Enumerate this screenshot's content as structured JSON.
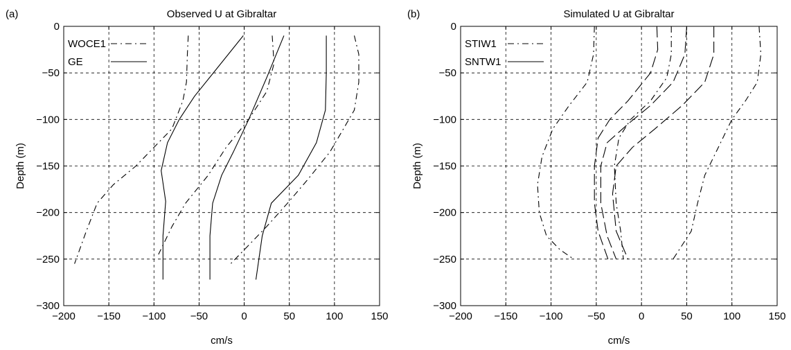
{
  "chart_data": [
    {
      "type": "line",
      "panel_label": "(a)",
      "title": "Observed U at Gibraltar",
      "xlabel": "cm/s",
      "ylabel": "Depth (m)",
      "xlim": [
        -200,
        150
      ],
      "ylim": [
        -300,
        0
      ],
      "xticks": [
        -200,
        -150,
        -100,
        -50,
        0,
        50,
        100,
        150
      ],
      "yticks": [
        0,
        -50,
        -100,
        -150,
        -200,
        -250,
        -300
      ],
      "grid": true,
      "legend": {
        "placement": "top-left",
        "entries": [
          {
            "label": "WOCE1",
            "style": "dashdot"
          },
          {
            "label": "GE",
            "style": "solid"
          }
        ]
      },
      "series": [
        {
          "name": "WOCE1",
          "style": "dashdot",
          "points": [
            [
              -62,
              -10
            ],
            [
              -63,
              -30
            ],
            [
              -64,
              -60
            ],
            [
              -68,
              -80
            ],
            [
              -80,
              -110
            ],
            [
              -100,
              -130
            ],
            [
              -120,
              -150
            ],
            [
              -145,
              -170
            ],
            [
              -163,
              -190
            ],
            [
              -175,
              -220
            ],
            [
              -188,
              -255
            ]
          ]
        },
        {
          "name": "WOCE1",
          "style": "dashdot",
          "points": [
            [
              31,
              -10
            ],
            [
              33,
              -40
            ],
            [
              25,
              -70
            ],
            [
              5,
              -100
            ],
            [
              -20,
              -130
            ],
            [
              -40,
              -160
            ],
            [
              -65,
              -190
            ],
            [
              -80,
              -215
            ],
            [
              -95,
              -245
            ]
          ]
        },
        {
          "name": "WOCE1",
          "style": "dashdot",
          "points": [
            [
              122,
              -10
            ],
            [
              127,
              -30
            ],
            [
              127,
              -60
            ],
            [
              122,
              -90
            ],
            [
              110,
              -110
            ],
            [
              95,
              -135
            ],
            [
              70,
              -165
            ],
            [
              48,
              -190
            ],
            [
              25,
              -215
            ],
            [
              0,
              -240
            ],
            [
              -15,
              -255
            ]
          ]
        },
        {
          "name": "GE",
          "style": "solid",
          "points": [
            [
              -1,
              -10
            ],
            [
              -30,
              -45
            ],
            [
              -55,
              -75
            ],
            [
              -72,
              -100
            ],
            [
              -85,
              -125
            ],
            [
              -92,
              -155
            ],
            [
              -87,
              -188
            ],
            [
              -90,
              -225
            ],
            [
              -90,
              -272
            ]
          ]
        },
        {
          "name": "GE",
          "style": "solid",
          "points": [
            [
              44,
              -10
            ],
            [
              25,
              -55
            ],
            [
              5,
              -100
            ],
            [
              -12,
              -135
            ],
            [
              -25,
              -160
            ],
            [
              -35,
              -190
            ],
            [
              -38,
              -225
            ],
            [
              -38,
              -272
            ]
          ]
        },
        {
          "name": "GE",
          "style": "solid",
          "points": [
            [
              91,
              -10
            ],
            [
              91,
              -50
            ],
            [
              90,
              -90
            ],
            [
              80,
              -125
            ],
            [
              60,
              -160
            ],
            [
              30,
              -190
            ],
            [
              20,
              -225
            ],
            [
              13,
              -272
            ]
          ]
        }
      ]
    },
    {
      "type": "line",
      "panel_label": "(b)",
      "title": "Simulated U at Gibraltar",
      "xlabel": "cm/s",
      "ylabel": "Depth (m)",
      "xlim": [
        -200,
        150
      ],
      "ylim": [
        -300,
        0
      ],
      "xticks": [
        -200,
        -150,
        -100,
        -50,
        0,
        50,
        100,
        150
      ],
      "yticks": [
        0,
        -50,
        -100,
        -150,
        -200,
        -250,
        -300
      ],
      "grid": true,
      "legend": {
        "placement": "top-left",
        "entries": [
          {
            "label": "STIW1",
            "style": "dashdot"
          },
          {
            "label": "SNTW1",
            "style": "solid"
          }
        ]
      },
      "series": [
        {
          "name": "STIW1",
          "style": "dashdot",
          "points": [
            [
              -52,
              0
            ],
            [
              -53,
              -30
            ],
            [
              -60,
              -60
            ],
            [
              -80,
              -85
            ],
            [
              -98,
              -110
            ],
            [
              -110,
              -140
            ],
            [
              -115,
              -170
            ],
            [
              -113,
              -200
            ],
            [
              -105,
              -225
            ],
            [
              -90,
              -240
            ],
            [
              -75,
              -250
            ]
          ]
        },
        {
          "name": "STIW1",
          "style": "dashdot",
          "points": [
            [
              33,
              0
            ],
            [
              33,
              -30
            ],
            [
              28,
              -55
            ],
            [
              10,
              -80
            ],
            [
              -12,
              -100
            ],
            [
              -25,
              -120
            ],
            [
              -30,
              -150
            ],
            [
              -28,
              -190
            ],
            [
              -23,
              -220
            ],
            [
              -20,
              -250
            ]
          ]
        },
        {
          "name": "STIW1",
          "style": "dashdot",
          "points": [
            [
              130,
              0
            ],
            [
              132,
              -30
            ],
            [
              128,
              -60
            ],
            [
              115,
              -80
            ],
            [
              100,
              -100
            ],
            [
              85,
              -130
            ],
            [
              70,
              -160
            ],
            [
              62,
              -190
            ],
            [
              55,
              -220
            ],
            [
              35,
              -250
            ]
          ]
        },
        {
          "name": "",
          "style": "longdash",
          "points": [
            [
              17,
              0
            ],
            [
              18,
              -25
            ],
            [
              10,
              -50
            ],
            [
              -15,
              -80
            ],
            [
              -35,
              -100
            ],
            [
              -48,
              -120
            ],
            [
              -52,
              -150
            ],
            [
              -52,
              -190
            ],
            [
              -48,
              -220
            ],
            [
              -37,
              -250
            ]
          ]
        },
        {
          "name": "",
          "style": "longdash",
          "points": [
            [
              50,
              0
            ],
            [
              48,
              -30
            ],
            [
              35,
              -60
            ],
            [
              10,
              -85
            ],
            [
              -15,
              -105
            ],
            [
              -38,
              -125
            ],
            [
              -45,
              -150
            ],
            [
              -45,
              -190
            ],
            [
              -38,
              -225
            ],
            [
              -28,
              -250
            ]
          ]
        },
        {
          "name": "",
          "style": "longdash",
          "points": [
            [
              80,
              0
            ],
            [
              80,
              -30
            ],
            [
              70,
              -60
            ],
            [
              45,
              -85
            ],
            [
              15,
              -110
            ],
            [
              -10,
              -130
            ],
            [
              -28,
              -150
            ],
            [
              -32,
              -180
            ],
            [
              -28,
              -220
            ],
            [
              -15,
              -250
            ]
          ]
        }
      ]
    }
  ]
}
